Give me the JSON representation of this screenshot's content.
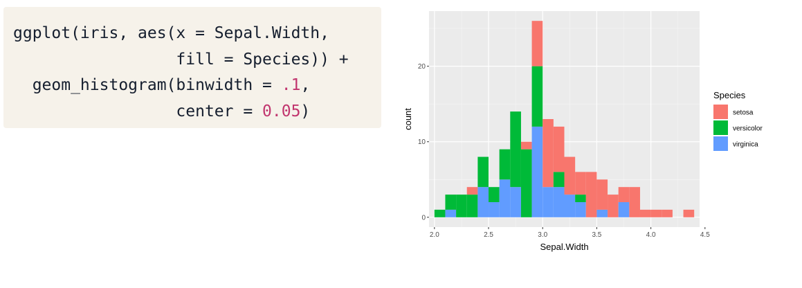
{
  "code": {
    "lines": [
      [
        {
          "t": "ggplot(iris, aes(x = Sepal.Width,",
          "k": "plain"
        }
      ],
      [
        {
          "t": "                 fill = Species)) +",
          "k": "plain"
        }
      ],
      [
        {
          "t": "  geom_histogram(binwidth = ",
          "k": "plain"
        },
        {
          "t": ".1",
          "k": "num"
        },
        {
          "t": ",",
          "k": "plain"
        }
      ],
      [
        {
          "t": "                 center = ",
          "k": "plain"
        },
        {
          "t": "0.05",
          "k": "num"
        },
        {
          "t": ")",
          "k": "plain"
        }
      ]
    ]
  },
  "chart_data": {
    "type": "bar",
    "stacked": true,
    "xlabel": "Sepal.Width",
    "ylabel": "count",
    "xlim": [
      1.95,
      4.45
    ],
    "ylim": [
      -1.3,
      27.3
    ],
    "xticks": [
      2.0,
      2.5,
      3.0,
      3.5,
      4.0,
      4.5
    ],
    "xtick_labels": [
      "2.0",
      "2.5",
      "3.0",
      "3.5",
      "4.0",
      "4.5"
    ],
    "yticks": [
      0,
      10,
      20
    ],
    "ytick_labels": [
      "0",
      "10",
      "20"
    ],
    "binwidth": 0.1,
    "bin_left_edges": [
      2.0,
      2.1,
      2.2,
      2.3,
      2.4,
      2.5,
      2.6,
      2.7,
      2.8,
      2.9,
      3.0,
      3.1,
      3.2,
      3.3,
      3.4,
      3.5,
      3.6,
      3.7,
      3.8,
      3.9,
      4.0,
      4.1,
      4.2,
      4.3
    ],
    "grid": true,
    "legend_position": "right",
    "legend_title": "Species",
    "series": [
      {
        "name": "virginica",
        "color": "#619cff",
        "values": [
          0,
          1,
          0,
          0,
          4,
          2,
          5,
          4,
          0,
          12,
          4,
          4,
          3,
          2,
          0,
          1,
          0,
          2,
          0,
          0,
          0,
          0,
          0,
          0
        ]
      },
      {
        "name": "versicolor",
        "color": "#00ba38",
        "values": [
          1,
          2,
          3,
          3,
          4,
          2,
          4,
          10,
          9,
          8,
          0,
          2,
          0,
          1,
          0,
          0,
          0,
          0,
          0,
          0,
          0,
          0,
          0,
          0
        ]
      },
      {
        "name": "setosa",
        "color": "#f8766d",
        "values": [
          0,
          0,
          0,
          1,
          0,
          0,
          0,
          0,
          1,
          6,
          9,
          6,
          5,
          3,
          6,
          4,
          3,
          2,
          4,
          1,
          1,
          1,
          0,
          1
        ]
      }
    ],
    "legend_order": [
      "setosa",
      "versicolor",
      "virginica"
    ]
  }
}
